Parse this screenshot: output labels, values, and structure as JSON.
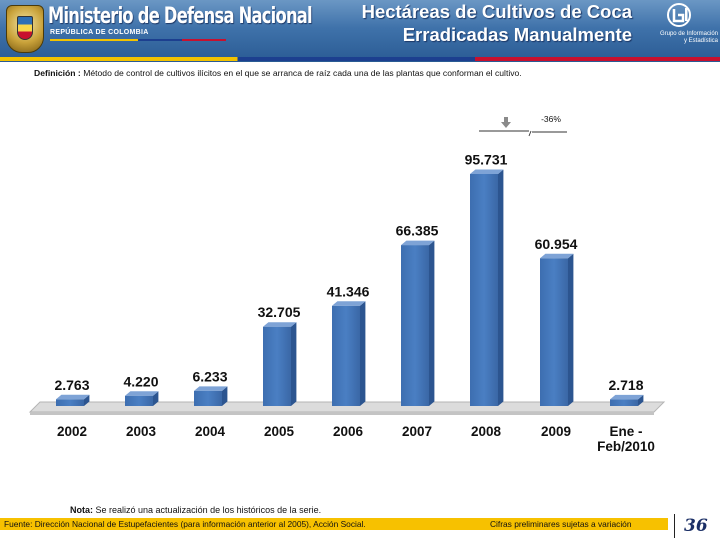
{
  "header": {
    "ministry_name": "Ministerio de Defensa Nacional",
    "ministry_subtitle": "REPÚBLICA DE COLOMBIA",
    "title_line1": "Hectáreas de Cultivos de Coca",
    "title_line2": "Erradicadas Manualmente",
    "group_line1": "Grupo de Información",
    "group_line2": "y Estadística"
  },
  "definition": {
    "label": "Definición :",
    "text": "Método de control de cultivos ilícitos en el que se arranca de raíz cada una de las plantas que conforman el cultivo."
  },
  "variation": {
    "label": "-36%",
    "direction": "down"
  },
  "chart_data": {
    "type": "bar",
    "categories": [
      "2002",
      "2003",
      "2004",
      "2005",
      "2006",
      "2007",
      "2008",
      "2009",
      "Ene - Feb/2010"
    ],
    "values": [
      2763,
      4220,
      6233,
      32705,
      41346,
      66385,
      95731,
      60954,
      2718
    ],
    "value_labels": [
      "2.763",
      "4.220",
      "6.233",
      "32.705",
      "41.346",
      "66.385",
      "95.731",
      "60.954",
      "2.718"
    ],
    "title": "",
    "xlabel": "",
    "ylabel": "",
    "ylim": [
      0,
      100000
    ],
    "grid": false,
    "legend": "none",
    "bar_color": "#4a7fc3"
  },
  "footer": {
    "note_label": "Nota:",
    "note_text": "Se realizó una actualización de los históricos de la serie.",
    "source": "Fuente: Dirección Nacional de Estupefacientes (para información anterior al 2005), Acción Social.",
    "preliminary": "Cifras preliminares sujetas a variación",
    "page_number": "36"
  }
}
